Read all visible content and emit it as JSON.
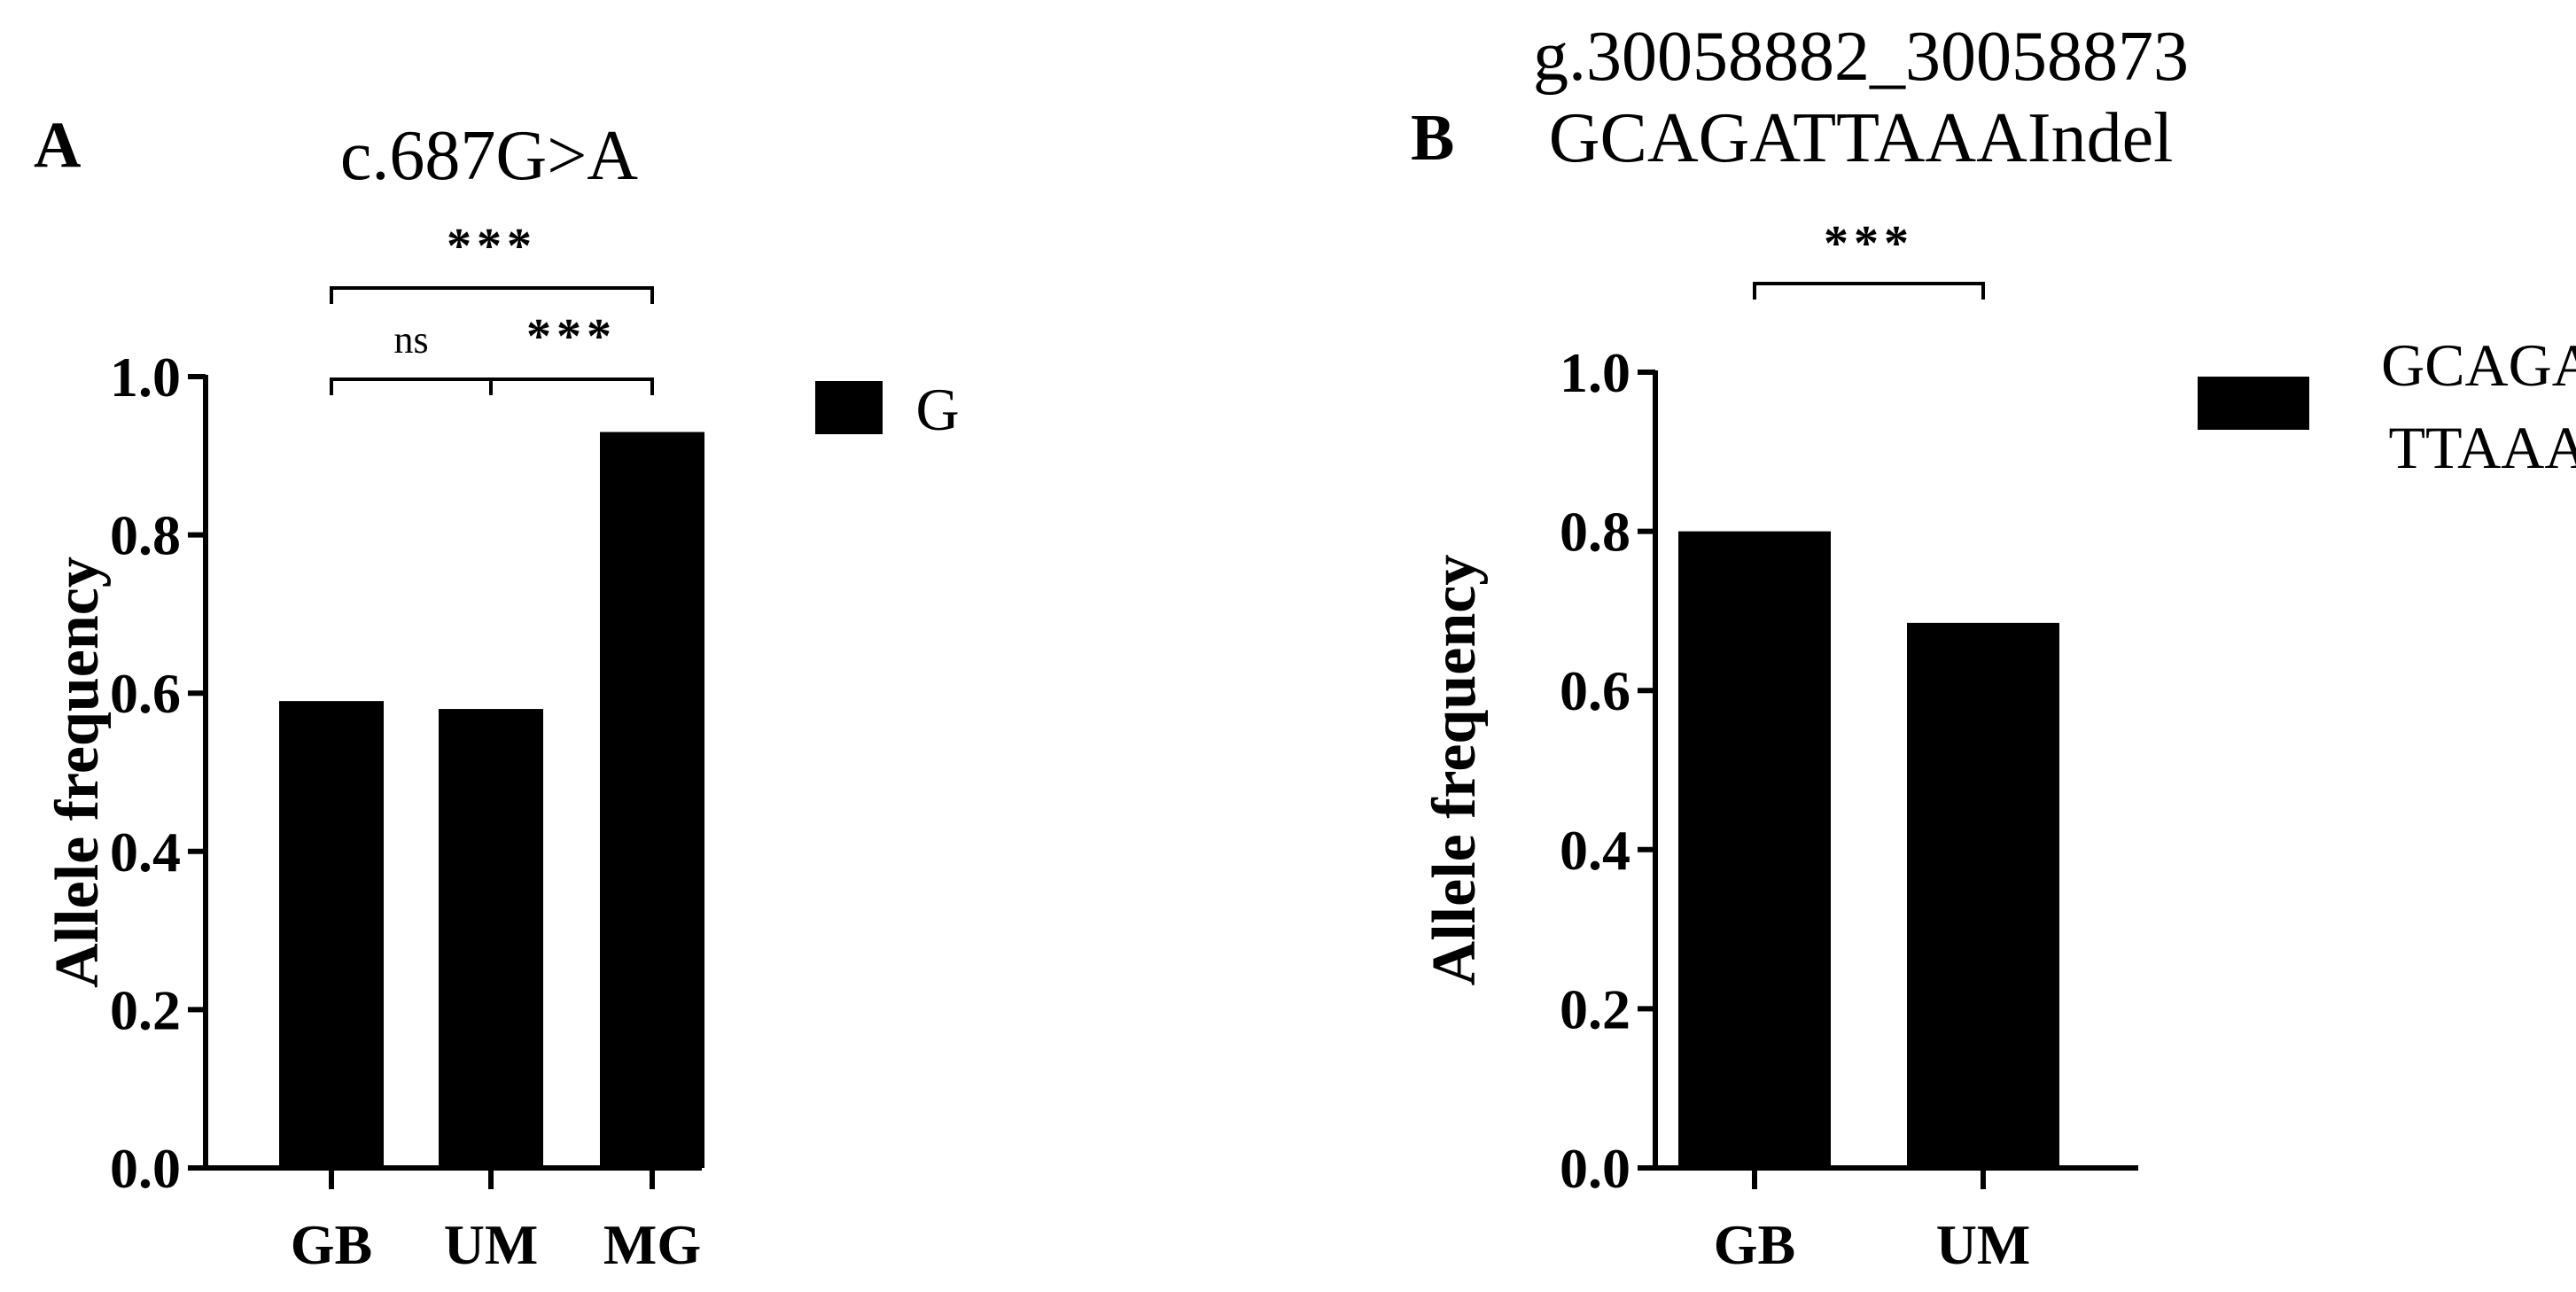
{
  "chart_data": [
    {
      "type": "bar",
      "panel": "A",
      "title": "c.687G>A",
      "ylabel": "Allele frequency",
      "xlabel": "",
      "ylim": [
        0,
        1.0
      ],
      "yticks": [
        "0.0",
        "0.2",
        "0.4",
        "0.6",
        "0.8",
        "1.0"
      ],
      "categories": [
        "GB",
        "UM",
        "MG"
      ],
      "series": [
        {
          "name": "G",
          "values": [
            0.59,
            0.58,
            0.93
          ],
          "color": "#000000"
        }
      ],
      "legend": {
        "label": "G",
        "placement": "right"
      },
      "annotations": [
        {
          "from": "GB",
          "to": "MG",
          "label": "***"
        },
        {
          "from": "GB",
          "to": "UM",
          "label": "ns"
        },
        {
          "from": "UM",
          "to": "MG",
          "label": "***"
        }
      ]
    },
    {
      "type": "bar",
      "panel": "B",
      "title": [
        "g.30058882_30058873",
        "GCAGATTAAAIndel"
      ],
      "ylabel": "Allele frequency",
      "xlabel": "",
      "ylim": [
        0,
        1.0
      ],
      "yticks": [
        "0.0",
        "0.2",
        "0.4",
        "0.6",
        "0.8",
        "1.0"
      ],
      "categories": [
        "GB",
        "UM"
      ],
      "series": [
        {
          "name": "GCAGATTAAA",
          "values": [
            0.8,
            0.685
          ],
          "color": "#000000"
        }
      ],
      "legend": {
        "label": [
          "GCAGA",
          "TTAAA"
        ],
        "placement": "right"
      },
      "annotations": [
        {
          "from": "GB",
          "to": "UM",
          "label": "***"
        }
      ]
    }
  ]
}
